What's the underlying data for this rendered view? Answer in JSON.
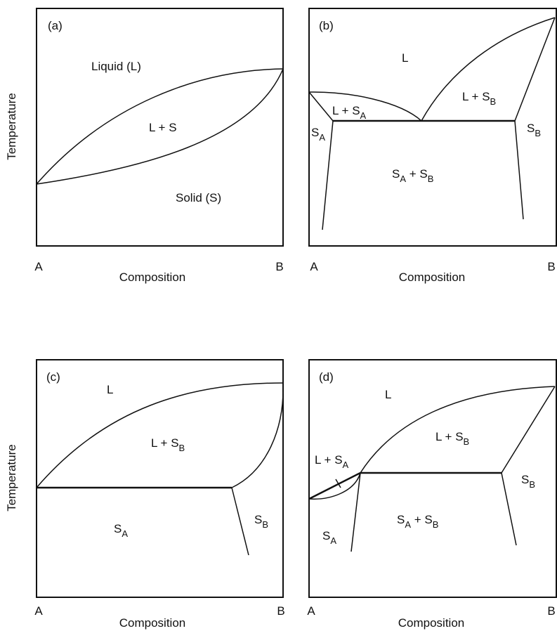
{
  "y_axis_label": "Temperature",
  "panels": {
    "a": {
      "tag": "(a)",
      "liquid": "Liquid (L)",
      "two_phase": "L + S",
      "solid": "Solid (S)",
      "x_left": "A",
      "x_right": "B",
      "x_title": "Composition"
    },
    "b": {
      "tag": "(b)",
      "liquid": "L",
      "l_sb": "L + S",
      "l_sa": "L + S",
      "sa": "S",
      "sb": "S",
      "sa_sb_1": "S",
      "sa_sb_2": " + S",
      "sub_a": "A",
      "sub_b": "B",
      "x_left": "A",
      "x_right": "B",
      "x_title": "Composition"
    },
    "c": {
      "tag": "(c)",
      "liquid": "L",
      "l_sb": "L + S",
      "sa": "S",
      "sb": "S",
      "sub_a": "A",
      "sub_b": "B",
      "x_left": "A",
      "x_right": "B",
      "x_title": "Composition"
    },
    "d": {
      "tag": "(d)",
      "liquid": "L",
      "l_sb": "L + S",
      "l_sa": "L + S",
      "sa": "S",
      "sb": "S",
      "sa_sb_1": "S",
      "sa_sb_2": " + S",
      "sub_a": "A",
      "sub_b": "B",
      "x_left": "A",
      "x_right": "B",
      "x_title": "Composition"
    }
  }
}
